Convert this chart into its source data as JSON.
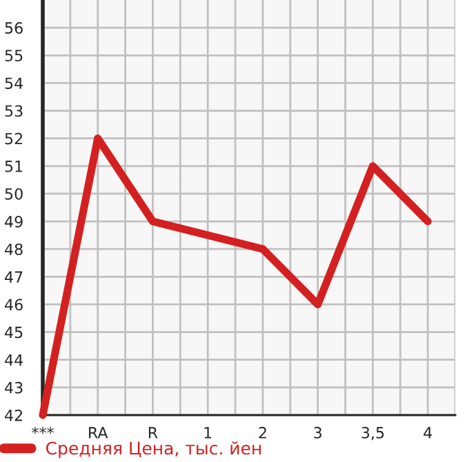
{
  "chart_data": {
    "type": "line",
    "categories": [
      "***",
      "RA",
      "R",
      "1",
      "2",
      "3",
      "3,5",
      "4"
    ],
    "series": [
      {
        "name": "Средняя Цена, тыс. йен",
        "color": "#d42020",
        "values": [
          42,
          52,
          49,
          48.5,
          48,
          46,
          51,
          49
        ]
      }
    ],
    "ylim": [
      42,
      57
    ],
    "yticks": [
      42,
      43,
      44,
      45,
      46,
      47,
      48,
      49,
      50,
      51,
      52,
      53,
      54,
      55,
      56
    ],
    "grid": true,
    "legend": "bottom",
    "marker": "none",
    "line_style": "solid"
  }
}
